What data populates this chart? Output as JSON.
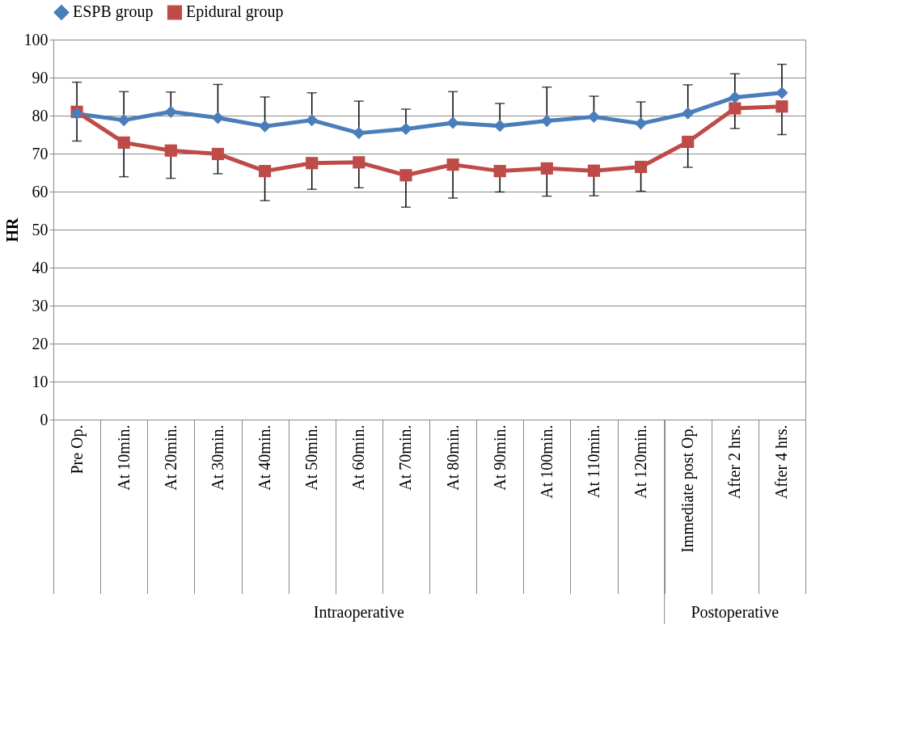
{
  "chart_data": {
    "type": "line",
    "ylabel": "HR",
    "categories": [
      "Pre Op.",
      "At 10min.",
      "At 20min.",
      "At 30min.",
      "At 40min.",
      "At 50min.",
      "At 60min.",
      "At 70min.",
      "At 80min.",
      "At 90min.",
      "At 100min.",
      "At 110min.",
      "At 120min.",
      "Immediate post Op.",
      "After 2 hrs.",
      "After 4 hrs."
    ],
    "series": [
      {
        "name": "ESPB group",
        "color": "#4a7ebb",
        "marker": "diamond",
        "values": [
          80.5,
          78.8,
          81.0,
          79.4,
          77.2,
          78.8,
          75.4,
          76.5,
          78.1,
          77.3,
          78.6,
          79.7,
          77.9,
          80.6,
          84.8,
          86.0
        ],
        "errors": [
          [
            80.5,
            88.8
          ],
          [
            78.8,
            86.3
          ],
          [
            81.0,
            86.2
          ],
          [
            79.4,
            88.2
          ],
          [
            77.2,
            84.9
          ],
          [
            78.8,
            86.0
          ],
          [
            75.4,
            83.8
          ],
          [
            76.5,
            81.7
          ],
          [
            78.1,
            86.3
          ],
          [
            77.3,
            83.2
          ],
          [
            78.6,
            87.5
          ],
          [
            79.7,
            85.1
          ],
          [
            77.9,
            83.6
          ],
          [
            80.6,
            88.1
          ],
          [
            84.8,
            91.0
          ],
          [
            86.0,
            93.5
          ]
        ]
      },
      {
        "name": "Epidural group",
        "color": "#be4b48",
        "marker": "square",
        "values": [
          81.0,
          72.9,
          70.8,
          69.9,
          65.4,
          67.5,
          67.7,
          64.3,
          67.1,
          65.4,
          66.1,
          65.5,
          66.5,
          73.1,
          81.9,
          82.4
        ],
        "errors": [
          [
            73.3,
            81.0
          ],
          [
            63.9,
            72.9
          ],
          [
            63.5,
            70.8
          ],
          [
            64.7,
            69.9
          ],
          [
            57.6,
            65.4
          ],
          [
            60.6,
            67.5
          ],
          [
            61.0,
            67.7
          ],
          [
            55.9,
            64.3
          ],
          [
            58.3,
            67.1
          ],
          [
            59.9,
            65.4
          ],
          [
            58.8,
            66.1
          ],
          [
            58.9,
            65.5
          ],
          [
            60.1,
            66.5
          ],
          [
            66.4,
            73.1
          ],
          [
            76.6,
            81.9
          ],
          [
            75.0,
            82.4
          ]
        ]
      }
    ],
    "ylim": [
      0,
      100
    ],
    "yticks": [
      0,
      10,
      20,
      30,
      40,
      50,
      60,
      70,
      80,
      90,
      100
    ],
    "grid": "y",
    "legend": "top",
    "line_style": "solid",
    "annotations": [
      "Intraoperative",
      "Postoperative"
    ]
  }
}
